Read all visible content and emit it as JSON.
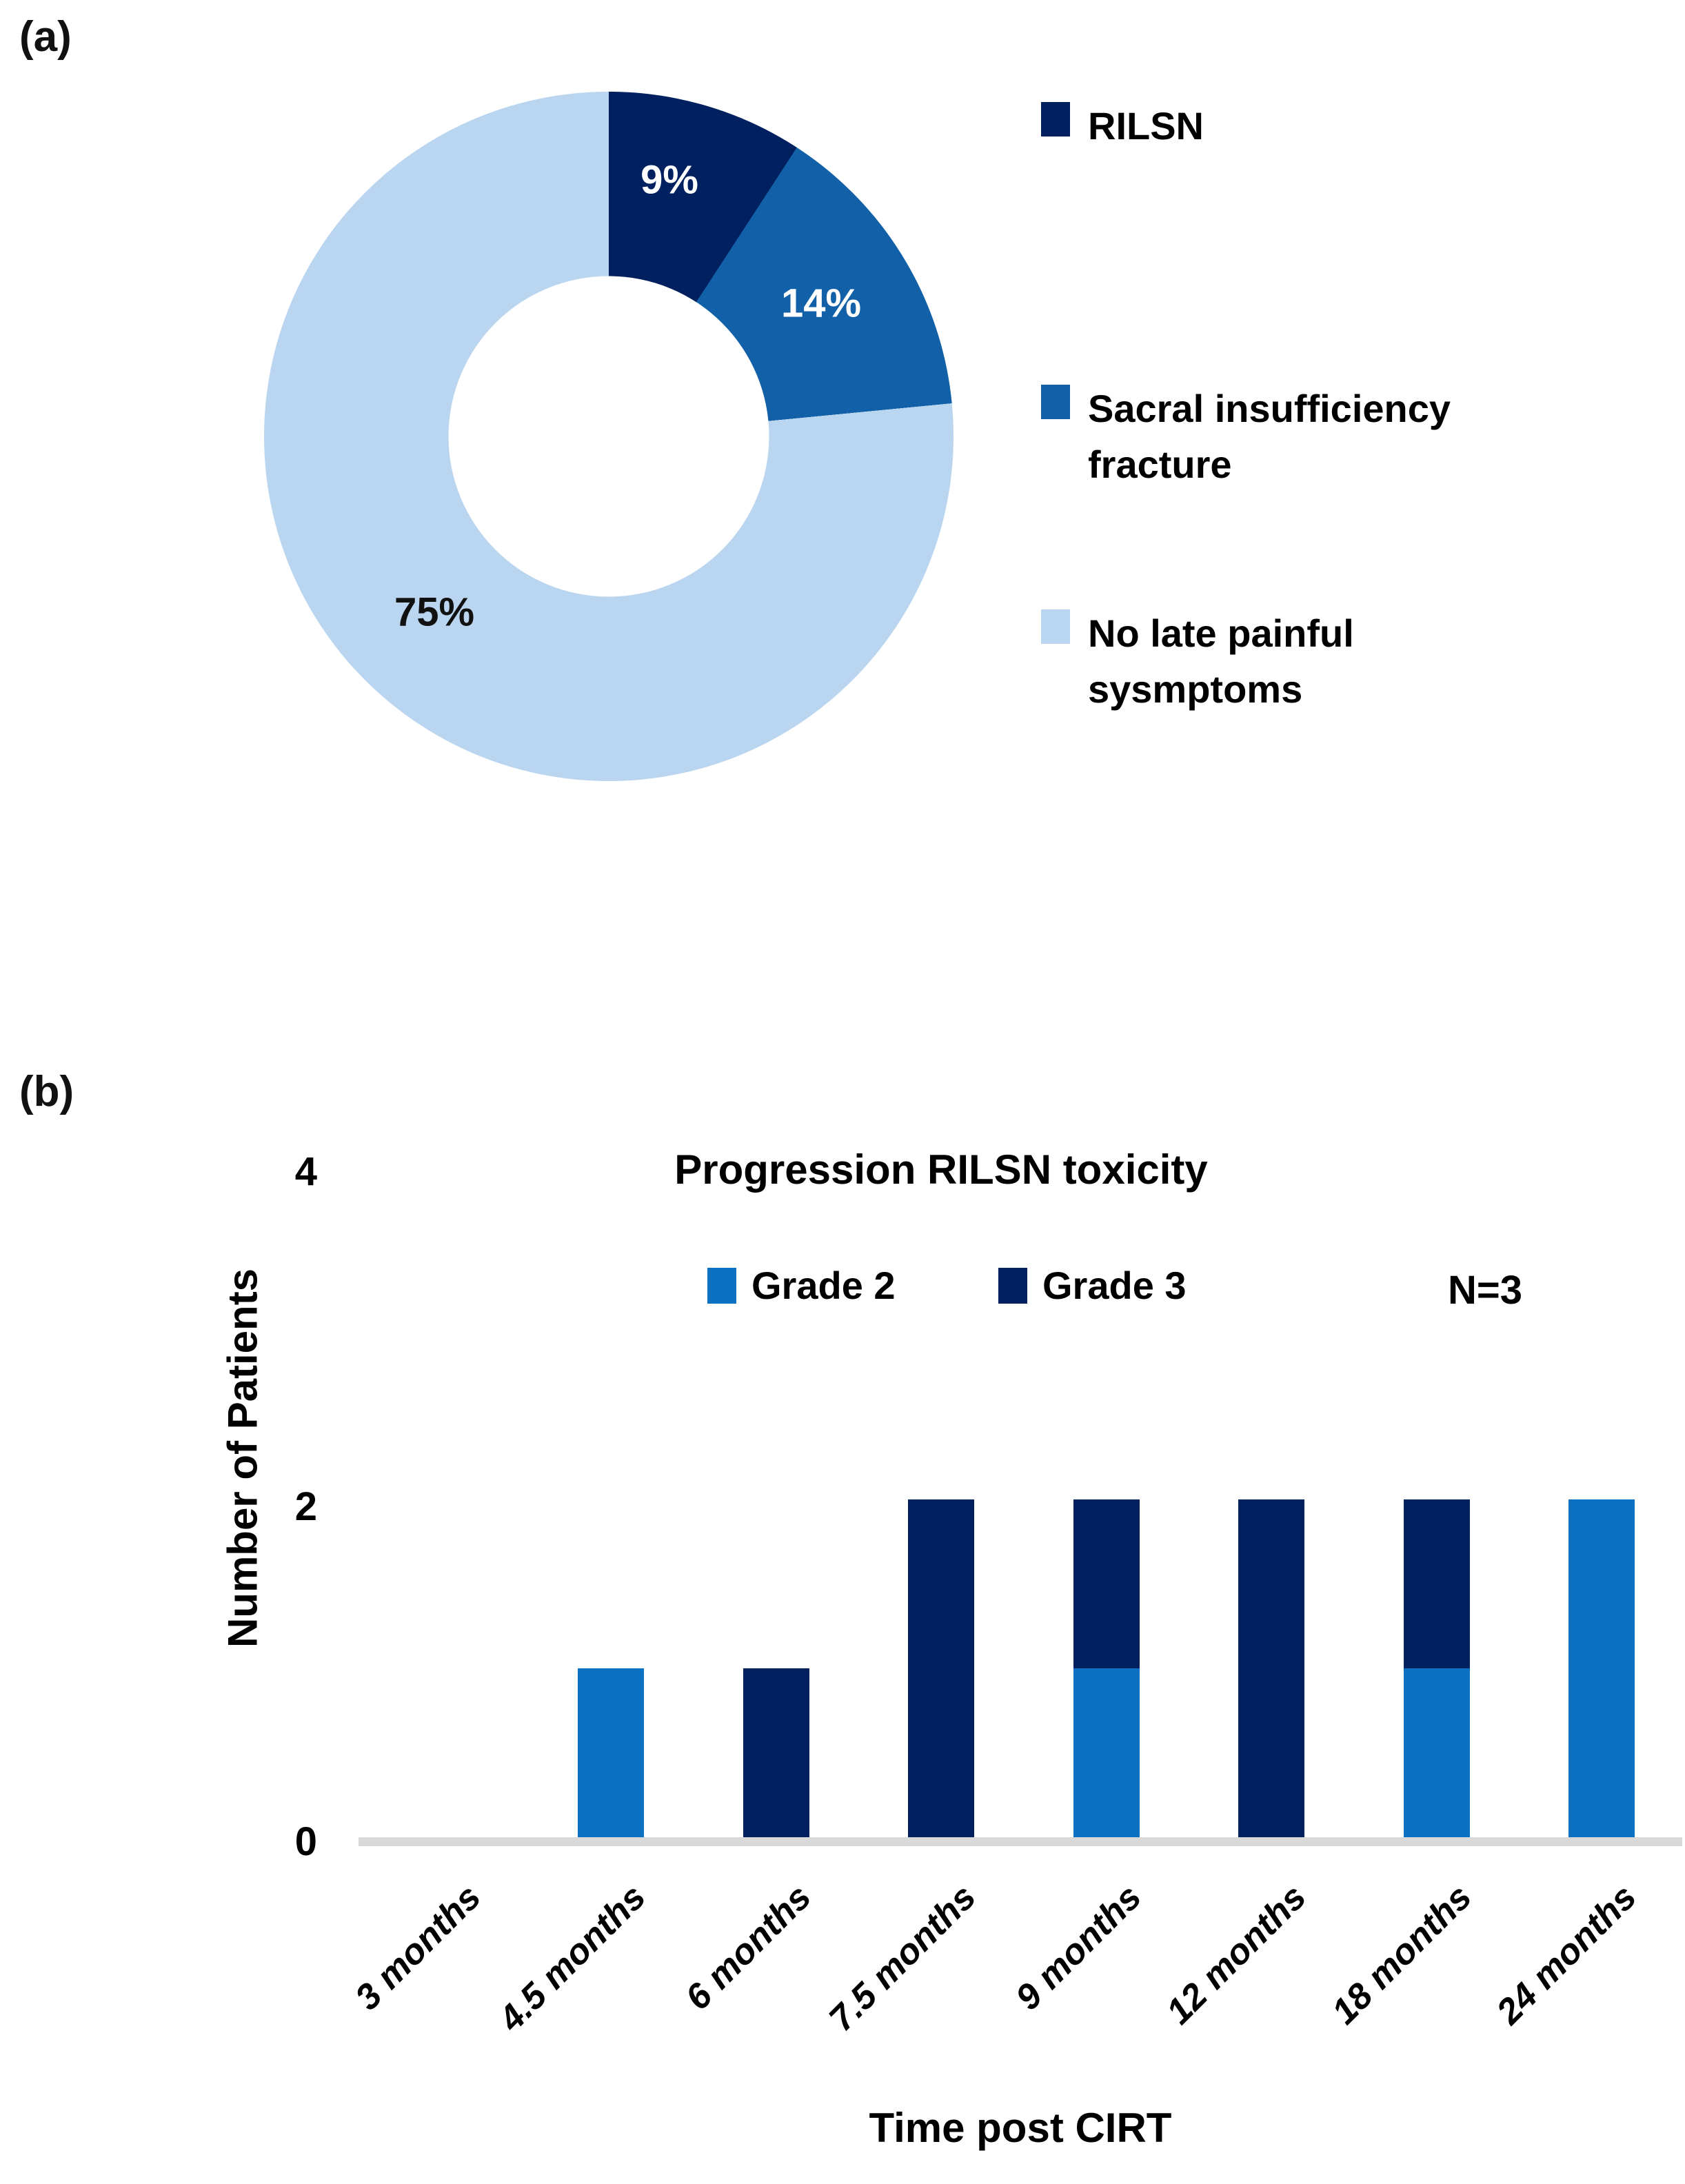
{
  "panels": {
    "a": "(a)",
    "b": "(b)"
  },
  "colors": {
    "navy": "#002060",
    "medium_blue": "#1160A8",
    "bright_blue": "#0B72C3",
    "light_blue": "#B9D5F0",
    "axis_line": "#D9D9D9",
    "label_on_dark": "#FFFFFF",
    "text": "#000000"
  },
  "chart_data": [
    {
      "id": "late-painful-symptoms-donut",
      "type": "pie",
      "subtype": "donut",
      "start_angle_deg": 0,
      "direction": "clockwise",
      "legend_position": "right",
      "slices": [
        {
          "label": "RILSN",
          "value_pct": 9,
          "data_label": "9%",
          "color": "#002060"
        },
        {
          "label": "Sacral insufficiency fracture",
          "value_pct": 14,
          "data_label": "14%",
          "color": "#1160A8"
        },
        {
          "label": "No late painful sysmptoms",
          "value_pct": 75,
          "data_label": "75%",
          "color": "#B9D5F0"
        }
      ]
    },
    {
      "id": "progression-rilsn-toxicity",
      "type": "bar",
      "stacked": true,
      "title": "Progression RILSN toxicity",
      "annotation": "N=3",
      "xlabel": "Time post CIRT",
      "ylabel": "Number of Patients",
      "categories": [
        "3 months",
        "4.5 months",
        "6 months",
        "7.5 months",
        "9 months",
        "12 months",
        "18 months",
        "24 months"
      ],
      "series": [
        {
          "name": "Grade 2",
          "color": "#0B72C3",
          "values": [
            0,
            1,
            0,
            0,
            1,
            0,
            1,
            2
          ]
        },
        {
          "name": "Grade 3",
          "color": "#002060",
          "values": [
            0,
            0,
            1,
            2,
            1,
            2,
            1,
            0
          ]
        }
      ],
      "ylim": [
        0,
        4
      ],
      "yticks": [
        0,
        2,
        4
      ],
      "grid": false,
      "legend_position": "top"
    }
  ]
}
